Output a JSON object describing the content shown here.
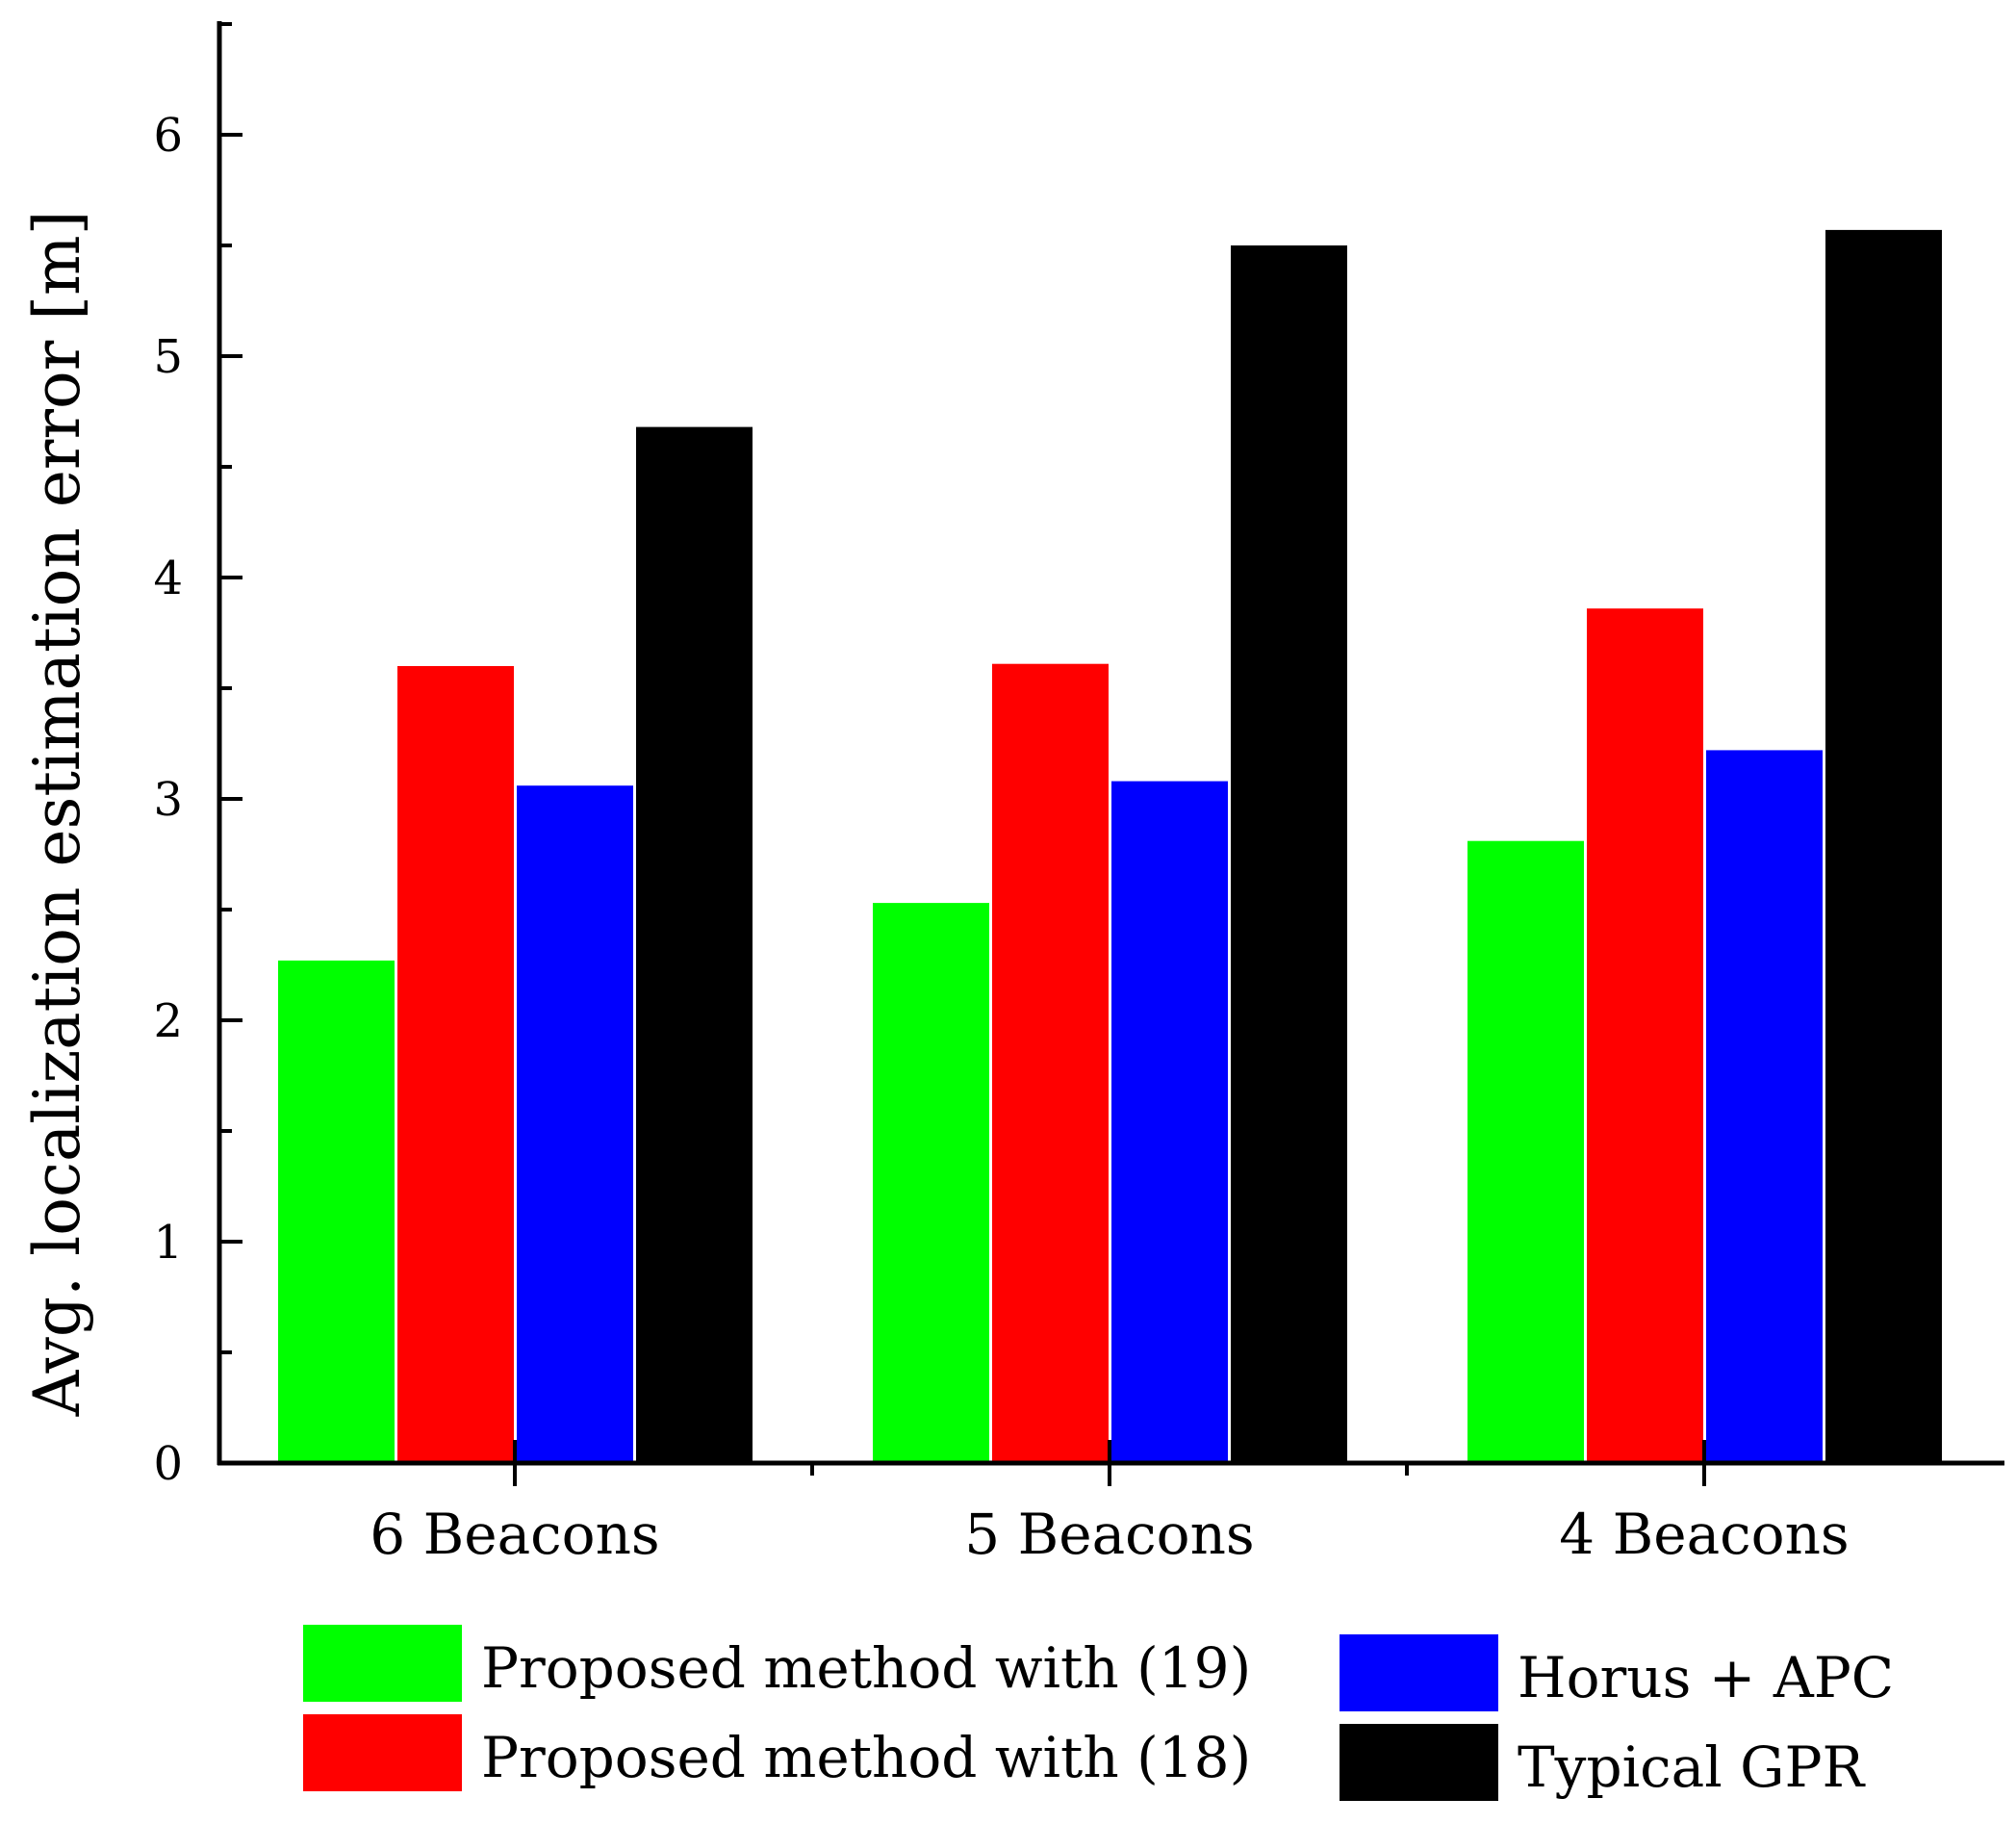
{
  "chart_data": {
    "type": "bar",
    "title": "",
    "xlabel": "",
    "ylabel": "Avg. localization estimation error [m]",
    "ylim": [
      0,
      6.5
    ],
    "yticks": [
      0,
      1,
      2,
      3,
      4,
      5,
      6
    ],
    "ytick_labels": [
      "0",
      "1",
      "2",
      "3",
      "4",
      "5",
      "6"
    ],
    "grid": false,
    "legend_position": "bottom",
    "categories": [
      "6 Beacons",
      "5 Beacons",
      "4 Beacons"
    ],
    "series": [
      {
        "name": "Proposed method with (19)",
        "color": "#00ff00",
        "values": [
          2.27,
          2.53,
          2.81
        ]
      },
      {
        "name": "Proposed method with (18)",
        "color": "#ff0000",
        "values": [
          3.6,
          3.61,
          3.86
        ]
      },
      {
        "name": "Horus + APC",
        "color": "#0000ff",
        "values": [
          3.06,
          3.08,
          3.22
        ]
      },
      {
        "name": "Typical GPR",
        "color": "#000000",
        "values": [
          4.68,
          5.5,
          5.57
        ]
      }
    ]
  }
}
